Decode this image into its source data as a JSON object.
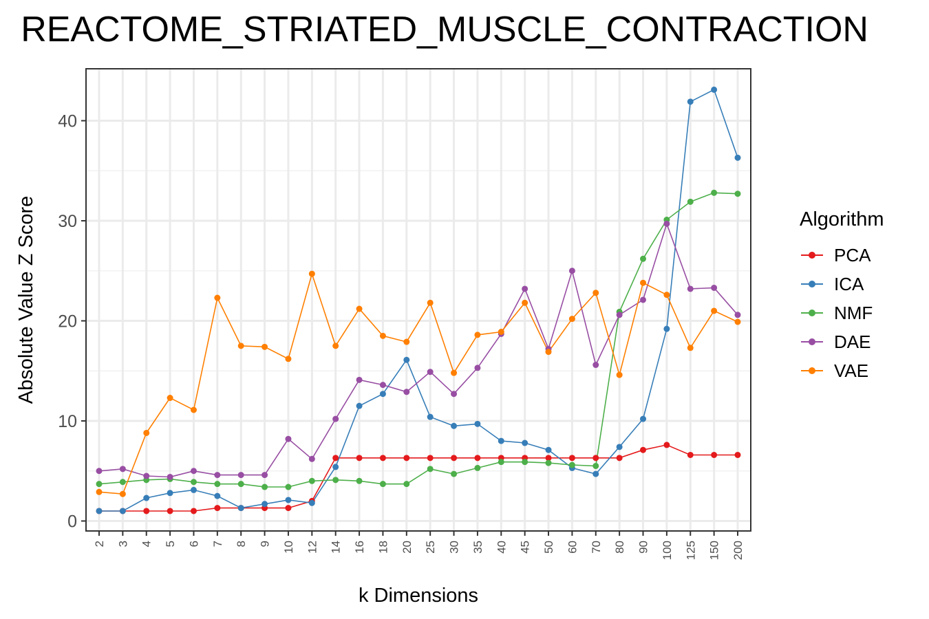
{
  "chart_data": {
    "type": "line",
    "title": "REACTOME_STRIATED_MUSCLE_CONTRACTION",
    "xlabel": "k Dimensions",
    "ylabel": "Absolute Value Z Score",
    "categories": [
      "2",
      "3",
      "4",
      "5",
      "6",
      "7",
      "8",
      "9",
      "10",
      "12",
      "14",
      "16",
      "18",
      "20",
      "25",
      "30",
      "35",
      "40",
      "45",
      "50",
      "60",
      "70",
      "80",
      "90",
      "100",
      "125",
      "150",
      "200"
    ],
    "ylim": [
      -1,
      45
    ],
    "yticks": [
      0,
      10,
      20,
      30,
      40
    ],
    "grid": true,
    "legend": {
      "title": "Algorithm",
      "position": "right"
    },
    "series": [
      {
        "name": "PCA",
        "color": "#e41a1c",
        "values": [
          1.0,
          1.0,
          1.0,
          1.0,
          1.0,
          1.3,
          1.3,
          1.3,
          1.3,
          2.0,
          6.3,
          6.3,
          6.3,
          6.3,
          6.3,
          6.3,
          6.3,
          6.3,
          6.3,
          6.3,
          6.3,
          6.3,
          6.3,
          7.1,
          7.6,
          6.6,
          6.6,
          6.6
        ]
      },
      {
        "name": "ICA",
        "color": "#377eb8",
        "values": [
          1.0,
          1.0,
          2.3,
          2.8,
          3.1,
          2.5,
          1.3,
          1.7,
          2.1,
          1.8,
          5.4,
          11.5,
          12.7,
          16.1,
          10.4,
          9.5,
          9.7,
          8.0,
          7.8,
          7.1,
          5.3,
          4.7,
          7.4,
          10.2,
          19.2,
          41.9,
          43.1,
          36.3
        ]
      },
      {
        "name": "NMF",
        "color": "#4daf4a",
        "values": [
          3.7,
          3.9,
          4.1,
          4.2,
          3.9,
          3.7,
          3.7,
          3.4,
          3.4,
          4.0,
          4.1,
          4.0,
          3.7,
          3.7,
          5.2,
          4.7,
          5.3,
          5.9,
          5.9,
          5.8,
          5.6,
          5.5,
          20.9,
          26.2,
          30.1,
          31.9,
          32.8,
          32.7
        ]
      },
      {
        "name": "DAE",
        "color": "#984ea3",
        "values": [
          5.0,
          5.2,
          4.5,
          4.4,
          5.0,
          4.6,
          4.6,
          4.6,
          8.2,
          6.2,
          10.2,
          14.1,
          13.6,
          12.9,
          14.9,
          12.7,
          15.3,
          18.7,
          23.2,
          17.2,
          25.0,
          15.6,
          20.6,
          22.1,
          29.7,
          23.2,
          23.3,
          20.6
        ]
      },
      {
        "name": "VAE",
        "color": "#ff7f00",
        "values": [
          2.9,
          2.7,
          8.8,
          12.3,
          11.1,
          22.3,
          17.5,
          17.4,
          16.2,
          24.7,
          17.5,
          21.2,
          18.5,
          17.9,
          21.8,
          14.8,
          18.6,
          18.9,
          21.8,
          16.9,
          20.2,
          22.8,
          14.6,
          23.8,
          22.6,
          17.3,
          21.0,
          19.9
        ]
      }
    ]
  }
}
